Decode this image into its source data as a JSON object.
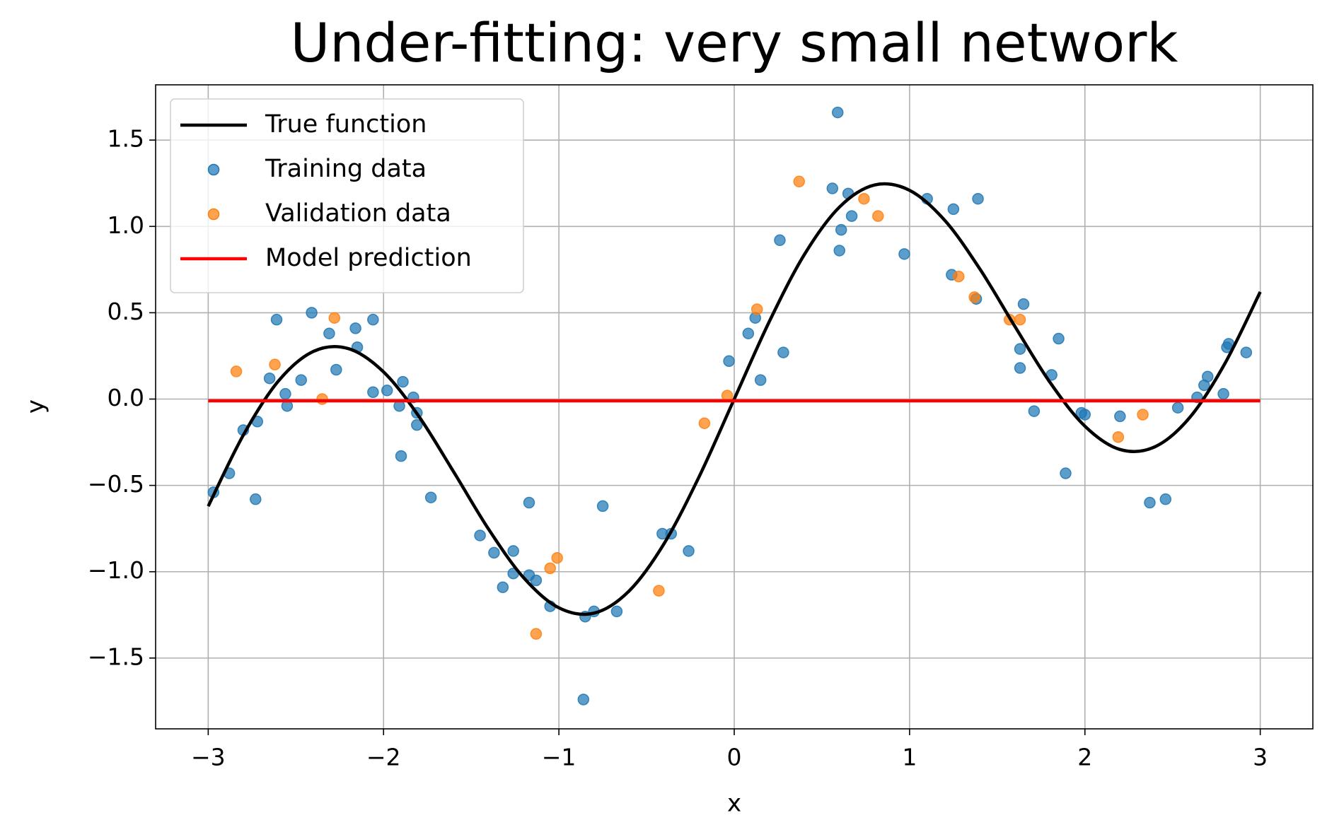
{
  "chart_data": {
    "type": "scatter",
    "title": "Under-fitting: very small network",
    "x_label": "x",
    "y_label": "y",
    "xlim": [
      -3.3,
      3.3
    ],
    "ylim": [
      -1.91,
      1.82
    ],
    "xticks": [
      {
        "value": -3,
        "label": "−3"
      },
      {
        "value": -2,
        "label": "−2"
      },
      {
        "value": -1,
        "label": "−1"
      },
      0,
      1,
      2,
      3
    ],
    "yticks": [
      {
        "value": -1.5,
        "label": "−1.5"
      },
      {
        "value": -1,
        "label": "−1.0"
      },
      {
        "value": -0.5,
        "label": "−0.5"
      },
      {
        "value": 0,
        "label": "0.0"
      },
      0.5,
      {
        "value": 1,
        "label": "1.0"
      },
      1.5
    ],
    "grid": true,
    "legend": "upper left",
    "series": [
      {
        "name": "True function",
        "type": "line",
        "color": "#000000",
        "x": [
          -3,
          -2.8,
          -2.6,
          -2.4,
          -2.2,
          -2,
          -1.8,
          -1.6,
          -1.4,
          -1.2,
          -1,
          -0.8,
          -0.6,
          -0.4,
          -0.2,
          0,
          0.2,
          0.4,
          0.6,
          0.8,
          1,
          1.2,
          1.4,
          1.6,
          1.8,
          2,
          2.2,
          2.4,
          2.6,
          2.8,
          3
        ],
        "values": [
          -0.621,
          -0.209,
          0.104,
          0.276,
          0.292,
          0.157,
          -0.098,
          -0.422,
          -0.755,
          -1.036,
          -1.209,
          -1.24,
          -1.112,
          -0.837,
          -0.449,
          0,
          0.449,
          0.837,
          1.112,
          1.24,
          1.209,
          1.036,
          0.755,
          0.422,
          0.098,
          -0.157,
          -0.292,
          -0.276,
          -0.104,
          0.209,
          0.621
        ]
      },
      {
        "name": "Training data",
        "type": "scatter",
        "color": "#1f77b4",
        "x": [
          -2.97,
          -2.88,
          -2.8,
          -2.73,
          -2.72,
          -2.65,
          -2.61,
          -2.56,
          -2.55,
          -2.47,
          -2.41,
          -2.31,
          -2.27,
          -2.16,
          -2.15,
          -2.06,
          -2.06,
          -1.98,
          -1.91,
          -1.9,
          -1.89,
          -1.83,
          -1.81,
          -1.81,
          -1.73,
          -1.45,
          -1.37,
          -1.32,
          -1.26,
          -1.26,
          -1.17,
          -1.17,
          -1.13,
          -1.05,
          -0.86,
          -0.85,
          -0.8,
          -0.75,
          -0.67,
          -0.41,
          -0.36,
          -0.26,
          -0.03,
          0.08,
          0.12,
          0.15,
          0.26,
          0.28,
          0.56,
          0.59,
          0.6,
          0.61,
          0.65,
          0.67,
          0.97,
          1.1,
          1.24,
          1.25,
          1.38,
          1.39,
          1.63,
          1.63,
          1.65,
          1.71,
          1.81,
          1.85,
          1.89,
          1.98,
          2,
          2.2,
          2.37,
          2.46,
          2.53,
          2.64,
          2.68,
          2.7,
          2.79,
          2.81,
          2.82,
          2.92
        ],
        "values": [
          -0.54,
          -0.43,
          -0.18,
          -0.58,
          -0.13,
          0.12,
          0.46,
          0.03,
          -0.04,
          0.11,
          0.5,
          0.38,
          0.17,
          0.41,
          0.3,
          0.46,
          0.04,
          0.05,
          -0.04,
          -0.33,
          0.1,
          0.01,
          -0.08,
          -0.15,
          -0.57,
          -0.79,
          -0.89,
          -1.09,
          -1.01,
          -0.88,
          -0.6,
          -1.02,
          -1.05,
          -1.2,
          -1.74,
          -1.26,
          -1.23,
          -0.62,
          -1.23,
          -0.78,
          -0.78,
          -0.88,
          0.22,
          0.38,
          0.47,
          0.11,
          0.92,
          0.27,
          1.22,
          1.66,
          0.86,
          0.98,
          1.19,
          1.06,
          0.84,
          1.16,
          0.72,
          1.1,
          0.58,
          1.16,
          0.29,
          0.18,
          0.55,
          -0.07,
          0.14,
          0.35,
          -0.43,
          -0.08,
          -0.09,
          -0.1,
          -0.6,
          -0.58,
          -0.05,
          0.01,
          0.08,
          0.13,
          0.03,
          0.3,
          0.32,
          0.27
        ]
      },
      {
        "name": "Validation data",
        "type": "scatter",
        "color": "#ff7f0e",
        "x": [
          -2.84,
          -2.62,
          -2.35,
          -2.28,
          -1.13,
          -1.05,
          -1.01,
          -0.43,
          -0.17,
          -0.04,
          0.13,
          0.37,
          0.74,
          0.82,
          1.28,
          1.37,
          1.57,
          1.63,
          2.19,
          2.33
        ],
        "values": [
          0.16,
          0.2,
          0,
          0.47,
          -1.36,
          -0.98,
          -0.92,
          -1.11,
          -0.14,
          0.02,
          0.52,
          1.26,
          1.16,
          1.06,
          0.71,
          0.59,
          0.46,
          0.46,
          -0.22,
          -0.09
        ]
      },
      {
        "name": "Model prediction",
        "type": "line",
        "color": "#ff0000",
        "x": [
          -3,
          3
        ],
        "values": [
          -0.01,
          -0.01
        ]
      }
    ]
  }
}
